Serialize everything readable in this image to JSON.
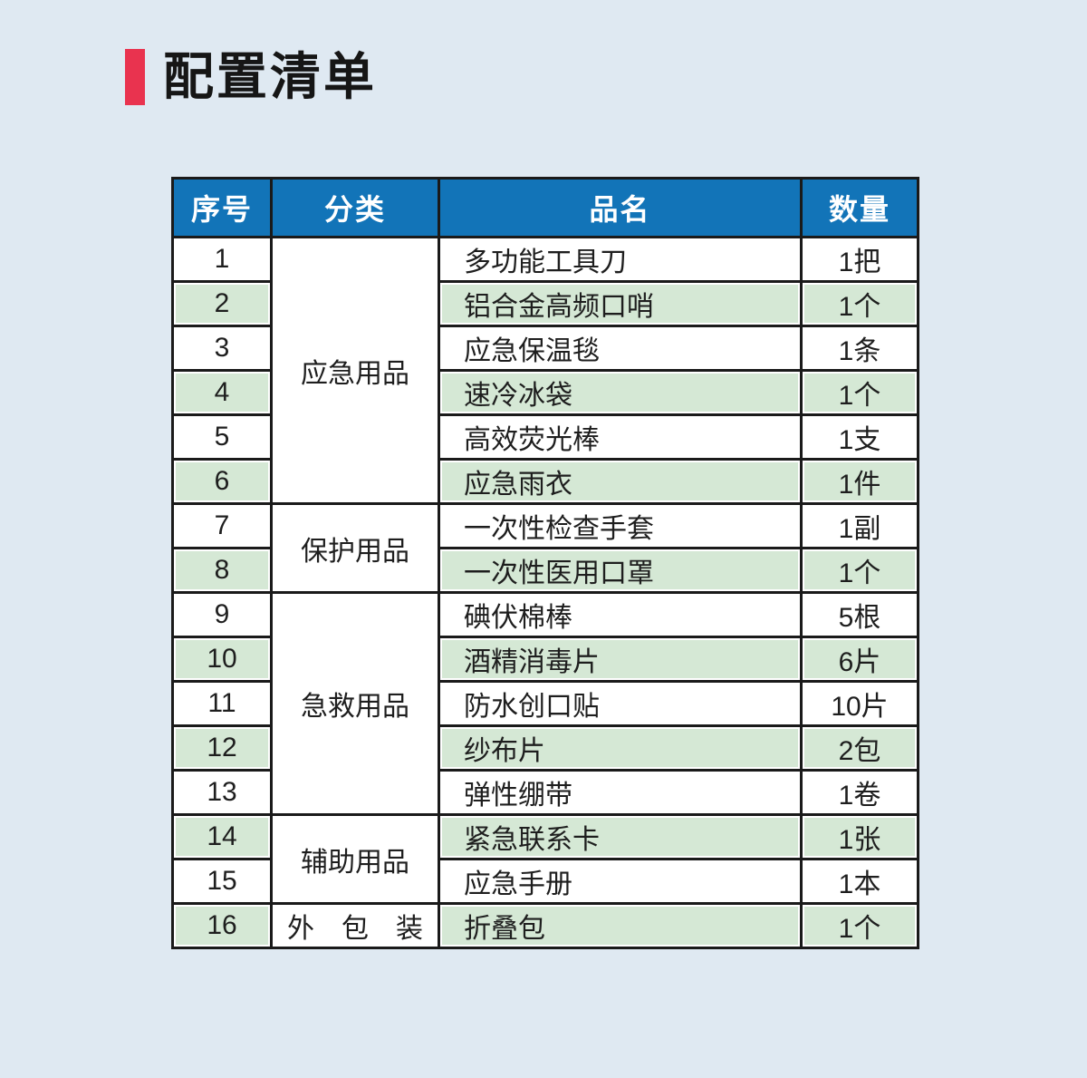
{
  "page": {
    "title": "配置清单"
  },
  "colors": {
    "page_background": "#dfe9f2",
    "accent_red": "#e9334f",
    "header_blue": "#1274b8",
    "stripe_green": "#d5e8d5",
    "border_black": "#1a1a1a"
  },
  "table": {
    "headers": [
      "序号",
      "分类",
      "品名",
      "数量"
    ],
    "categories": [
      {
        "label": "应急用品",
        "rowspan": 6
      },
      {
        "label": "保护用品",
        "rowspan": 2
      },
      {
        "label": "急救用品",
        "rowspan": 5
      },
      {
        "label": "辅助用品",
        "rowspan": 2
      },
      {
        "label": "外　包　装",
        "rowspan": 1
      }
    ],
    "rows": [
      {
        "no": "1",
        "name": "多功能工具刀",
        "qty": "1把"
      },
      {
        "no": "2",
        "name": "铝合金高频口哨",
        "qty": "1个"
      },
      {
        "no": "3",
        "name": "应急保温毯",
        "qty": "1条"
      },
      {
        "no": "4",
        "name": "速冷冰袋",
        "qty": "1个"
      },
      {
        "no": "5",
        "name": "高效荧光棒",
        "qty": "1支"
      },
      {
        "no": "6",
        "name": "应急雨衣",
        "qty": "1件"
      },
      {
        "no": "7",
        "name": "一次性检查手套",
        "qty": "1副"
      },
      {
        "no": "8",
        "name": "一次性医用口罩",
        "qty": "1个"
      },
      {
        "no": "9",
        "name": "碘伏棉棒",
        "qty": "5根"
      },
      {
        "no": "10",
        "name": "酒精消毒片",
        "qty": "6片"
      },
      {
        "no": "11",
        "name": "防水创口贴",
        "qty": "10片"
      },
      {
        "no": "12",
        "name": "纱布片",
        "qty": "2包"
      },
      {
        "no": "13",
        "name": "弹性绷带",
        "qty": "1卷"
      },
      {
        "no": "14",
        "name": "紧急联系卡",
        "qty": "1张"
      },
      {
        "no": "15",
        "name": "应急手册",
        "qty": "1本"
      },
      {
        "no": "16",
        "name": "折叠包",
        "qty": "1个"
      }
    ]
  }
}
